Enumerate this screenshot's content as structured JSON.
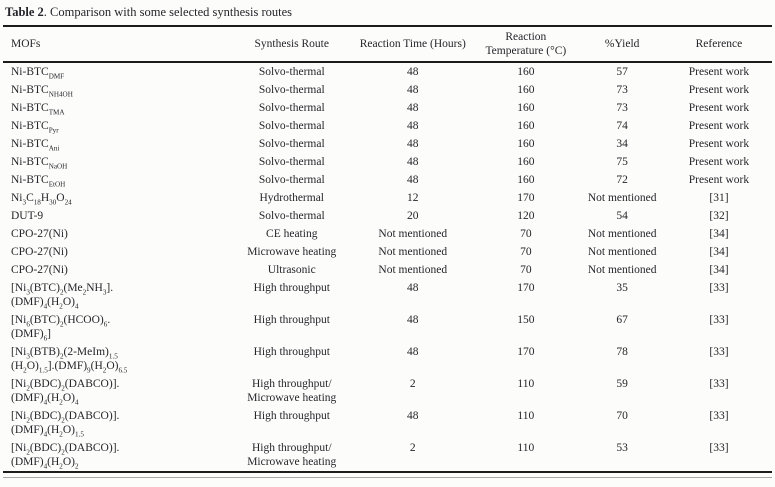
{
  "title": {
    "bold": "Table 2",
    "rest": ". Comparison with some selected synthesis routes"
  },
  "colors": {
    "text": "#25252b",
    "rule": "#1c1c1c",
    "background": "#fcfcfa"
  },
  "table": {
    "columns": [
      "MOFs",
      "Synthesis Route",
      "Reaction Time (Hours)",
      "Reaction Temperature (°C)",
      "%Yield",
      "Reference"
    ],
    "rows": [
      {
        "mof": [
          [
            {
              "t": "Ni-BTC"
            },
            {
              "t": "DMF",
              "sub": true
            }
          ]
        ],
        "route": [
          "Solvo-thermal"
        ],
        "time": "48",
        "temp": "160",
        "yield": "57",
        "ref": "Present work"
      },
      {
        "mof": [
          [
            {
              "t": "Ni-BTC"
            },
            {
              "t": "NH4OH",
              "sub": true
            }
          ]
        ],
        "route": [
          "Solvo-thermal"
        ],
        "time": "48",
        "temp": "160",
        "yield": "73",
        "ref": "Present work"
      },
      {
        "mof": [
          [
            {
              "t": "Ni-BTC"
            },
            {
              "t": "TMA",
              "sub": true
            }
          ]
        ],
        "route": [
          "Solvo-thermal"
        ],
        "time": "48",
        "temp": "160",
        "yield": "73",
        "ref": "Present work"
      },
      {
        "mof": [
          [
            {
              "t": "Ni-BTC"
            },
            {
              "t": "Pyr",
              "sub": true
            }
          ]
        ],
        "route": [
          "Solvo-thermal"
        ],
        "time": "48",
        "temp": "160",
        "yield": "74",
        "ref": "Present work"
      },
      {
        "mof": [
          [
            {
              "t": "Ni-BTC"
            },
            {
              "t": "Ani",
              "sub": true
            }
          ]
        ],
        "route": [
          "Solvo-thermal"
        ],
        "time": "48",
        "temp": "160",
        "yield": "34",
        "ref": "Present work"
      },
      {
        "mof": [
          [
            {
              "t": "Ni-BTC"
            },
            {
              "t": "NaOH",
              "sub": true
            }
          ]
        ],
        "route": [
          "Solvo-thermal"
        ],
        "time": "48",
        "temp": "160",
        "yield": "75",
        "ref": "Present work"
      },
      {
        "mof": [
          [
            {
              "t": "Ni-BTC"
            },
            {
              "t": "EtOH",
              "sub": true
            }
          ]
        ],
        "route": [
          "Solvo-thermal"
        ],
        "time": "48",
        "temp": "160",
        "yield": "72",
        "ref": "Present work"
      },
      {
        "mof": [
          [
            {
              "t": "Ni"
            },
            {
              "t": "3",
              "sub": true
            },
            {
              "t": "C"
            },
            {
              "t": "18",
              "sub": true
            },
            {
              "t": "H"
            },
            {
              "t": "30",
              "sub": true
            },
            {
              "t": "O"
            },
            {
              "t": "24",
              "sub": true
            }
          ]
        ],
        "route": [
          "Hydrothermal"
        ],
        "time": "12",
        "temp": "170",
        "yield": "Not mentioned",
        "ref": "[31]"
      },
      {
        "mof": [
          [
            {
              "t": "DUT-9"
            }
          ]
        ],
        "route": [
          "Solvo-thermal"
        ],
        "time": "20",
        "temp": "120",
        "yield": "54",
        "ref": "[32]"
      },
      {
        "mof": [
          [
            {
              "t": "CPO-27(Ni)"
            }
          ]
        ],
        "route": [
          "CE heating"
        ],
        "time": "Not mentioned",
        "temp": "70",
        "yield": "Not mentioned",
        "ref": "[34]"
      },
      {
        "mof": [
          [
            {
              "t": "CPO-27(Ni)"
            }
          ]
        ],
        "route": [
          "Microwave heating"
        ],
        "time": "Not mentioned",
        "temp": "70",
        "yield": "Not mentioned",
        "ref": "[34]"
      },
      {
        "mof": [
          [
            {
              "t": "CPO-27(Ni)"
            }
          ]
        ],
        "route": [
          "Ultrasonic"
        ],
        "time": "Not mentioned",
        "temp": "70",
        "yield": "Not mentioned",
        "ref": "[34]"
      },
      {
        "mof": [
          [
            {
              "t": "[Ni"
            },
            {
              "t": "3",
              "sub": true
            },
            {
              "t": "(BTC)"
            },
            {
              "t": "2",
              "sub": true
            },
            {
              "t": "(Me"
            },
            {
              "t": "2",
              "sub": true
            },
            {
              "t": "NH"
            },
            {
              "t": "3",
              "sub": true
            },
            {
              "t": "]."
            }
          ],
          [
            {
              "t": "(DMF)"
            },
            {
              "t": "4",
              "sub": true
            },
            {
              "t": "(H"
            },
            {
              "t": "2",
              "sub": true
            },
            {
              "t": "O)"
            },
            {
              "t": "4",
              "sub": true
            }
          ]
        ],
        "route": [
          "High throughput"
        ],
        "time": "48",
        "temp": "170",
        "yield": "35",
        "ref": "[33]"
      },
      {
        "mof": [
          [
            {
              "t": "[Ni"
            },
            {
              "t": "6",
              "sub": true
            },
            {
              "t": "(BTC)"
            },
            {
              "t": "2",
              "sub": true
            },
            {
              "t": "(HCOO)"
            },
            {
              "t": "6",
              "sub": true
            },
            {
              "t": "."
            }
          ],
          [
            {
              "t": "(DMF)"
            },
            {
              "t": "6",
              "sub": true
            },
            {
              "t": "]"
            }
          ]
        ],
        "route": [
          "High throughput"
        ],
        "time": "48",
        "temp": "150",
        "yield": "67",
        "ref": "[33]"
      },
      {
        "mof": [
          [
            {
              "t": "[Ni"
            },
            {
              "t": "3",
              "sub": true
            },
            {
              "t": "(BTB)"
            },
            {
              "t": "2",
              "sub": true
            },
            {
              "t": "(2-MeIm)"
            },
            {
              "t": "1.5",
              "sub": true
            }
          ],
          [
            {
              "t": "(H"
            },
            {
              "t": "2",
              "sub": true
            },
            {
              "t": "O)"
            },
            {
              "t": "1.5",
              "sub": true
            },
            {
              "t": "].(DMF)"
            },
            {
              "t": "9",
              "sub": true
            },
            {
              "t": "(H"
            },
            {
              "t": "2",
              "sub": true
            },
            {
              "t": "O)"
            },
            {
              "t": "6.5",
              "sub": true
            }
          ]
        ],
        "route": [
          "High throughput"
        ],
        "time": "48",
        "temp": "170",
        "yield": "78",
        "ref": "[33]"
      },
      {
        "mof": [
          [
            {
              "t": "[Ni"
            },
            {
              "t": "2",
              "sub": true
            },
            {
              "t": "(BDC)"
            },
            {
              "t": "2",
              "sub": true
            },
            {
              "t": "(DABCO)]."
            }
          ],
          [
            {
              "t": "(DMF)"
            },
            {
              "t": "4",
              "sub": true
            },
            {
              "t": "(H"
            },
            {
              "t": "2",
              "sub": true
            },
            {
              "t": "O)"
            },
            {
              "t": "4",
              "sub": true
            }
          ]
        ],
        "route": [
          "High throughput/",
          "Microwave heating"
        ],
        "time": "2",
        "temp": "110",
        "yield": "59",
        "ref": "[33]"
      },
      {
        "mof": [
          [
            {
              "t": "[Ni"
            },
            {
              "t": "2",
              "sub": true
            },
            {
              "t": "(BDC)"
            },
            {
              "t": "2",
              "sub": true
            },
            {
              "t": "(DABCO)]."
            }
          ],
          [
            {
              "t": "(DMF)"
            },
            {
              "t": "4",
              "sub": true
            },
            {
              "t": "(H"
            },
            {
              "t": "2",
              "sub": true
            },
            {
              "t": "O)"
            },
            {
              "t": "1.5",
              "sub": true
            }
          ]
        ],
        "route": [
          "High throughput"
        ],
        "time": "48",
        "temp": "110",
        "yield": "70",
        "ref": "[33]"
      },
      {
        "mof": [
          [
            {
              "t": "[Ni"
            },
            {
              "t": "2",
              "sub": true
            },
            {
              "t": "(BDC)"
            },
            {
              "t": "2",
              "sub": true
            },
            {
              "t": "(DABCO)]."
            }
          ],
          [
            {
              "t": "(DMF)"
            },
            {
              "t": "4",
              "sub": true
            },
            {
              "t": "(H"
            },
            {
              "t": "2",
              "sub": true
            },
            {
              "t": "O)"
            },
            {
              "t": "2",
              "sub": true
            }
          ]
        ],
        "route": [
          "High throughput/",
          "Microwave heating"
        ],
        "time": "2",
        "temp": "110",
        "yield": "53",
        "ref": "[33]"
      }
    ]
  }
}
